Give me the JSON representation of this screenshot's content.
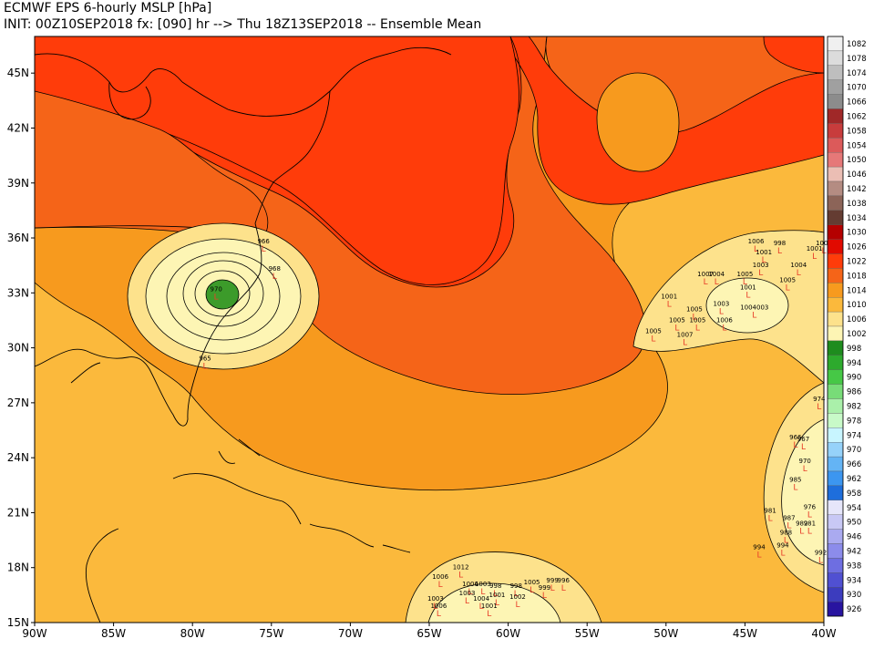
{
  "header": {
    "title_line1": "ECMWF EPS 6-hourly MSLP [hPa]",
    "title_line2": "INIT: 00Z10SEP2018 fx: [090] hr --> Thu 18Z13SEP2018 -- Ensemble Mean"
  },
  "map": {
    "lon_range": [
      -90,
      -40
    ],
    "lat_range": [
      15,
      47
    ],
    "lat_ticks": [
      {
        "value": 45,
        "label": "45N"
      },
      {
        "value": 42,
        "label": "42N"
      },
      {
        "value": 39,
        "label": "39N"
      },
      {
        "value": 36,
        "label": "36N"
      },
      {
        "value": 33,
        "label": "33N"
      },
      {
        "value": 30,
        "label": "30N"
      },
      {
        "value": 27,
        "label": "27N"
      },
      {
        "value": 24,
        "label": "24N"
      },
      {
        "value": 21,
        "label": "21N"
      },
      {
        "value": 18,
        "label": "18N"
      },
      {
        "value": 15,
        "label": "15N"
      }
    ],
    "lon_ticks": [
      {
        "value": -90,
        "label": "90W"
      },
      {
        "value": -85,
        "label": "85W"
      },
      {
        "value": -80,
        "label": "80W"
      },
      {
        "value": -75,
        "label": "75W"
      },
      {
        "value": -70,
        "label": "70W"
      },
      {
        "value": -65,
        "label": "65W"
      },
      {
        "value": -60,
        "label": "60W"
      },
      {
        "value": -55,
        "label": "55W"
      },
      {
        "value": -50,
        "label": "50W"
      },
      {
        "value": -45,
        "label": "45W"
      },
      {
        "value": -40,
        "label": "40W"
      }
    ],
    "colors": {
      "p1022": "#ff3c0a",
      "p1018": "#f56418",
      "p1014": "#f79a1e",
      "p1010": "#fbb93c",
      "p1006": "#fde28c",
      "low": "#3c9b2a",
      "low_marker": "#e8402a"
    },
    "lows": [
      {
        "lon": -78.5,
        "lat": 33.1,
        "label": "970"
      },
      {
        "lon": -79.2,
        "lat": 29.3,
        "label": "965"
      },
      {
        "lon": -75.5,
        "lat": 35.7,
        "label": "966"
      },
      {
        "lon": -74.8,
        "lat": 34.2,
        "label": "968"
      },
      {
        "lon": -49.8,
        "lat": 32.7,
        "label": "1001"
      },
      {
        "lon": -48.2,
        "lat": 32.0,
        "label": "1005"
      },
      {
        "lon": -47.5,
        "lat": 33.9,
        "label": "1007"
      },
      {
        "lon": -46.8,
        "lat": 33.9,
        "label": "1004"
      },
      {
        "lon": -45.0,
        "lat": 33.9,
        "label": "1005"
      },
      {
        "lon": -44.8,
        "lat": 33.2,
        "label": "1001"
      },
      {
        "lon": -44.4,
        "lat": 32.1,
        "label": "1004003"
      },
      {
        "lon": -46.3,
        "lat": 31.4,
        "label": "1006"
      },
      {
        "lon": -49.3,
        "lat": 31.4,
        "label": "1005"
      },
      {
        "lon": -48.0,
        "lat": 31.4,
        "label": "1005"
      },
      {
        "lon": -50.8,
        "lat": 30.8,
        "label": "1005"
      },
      {
        "lon": -48.8,
        "lat": 30.6,
        "label": "1007"
      },
      {
        "lon": -46.5,
        "lat": 32.3,
        "label": "1003"
      },
      {
        "lon": -44.3,
        "lat": 35.7,
        "label": "1006"
      },
      {
        "lon": -42.8,
        "lat": 35.6,
        "label": "998"
      },
      {
        "lon": -43.8,
        "lat": 35.1,
        "label": "1001"
      },
      {
        "lon": -44.0,
        "lat": 34.4,
        "label": "1003"
      },
      {
        "lon": -41.6,
        "lat": 34.4,
        "label": "1004"
      },
      {
        "lon": -40.6,
        "lat": 35.3,
        "label": "1001"
      },
      {
        "lon": -40.0,
        "lat": 35.6,
        "label": "1004"
      },
      {
        "lon": -42.3,
        "lat": 33.6,
        "label": "1005"
      },
      {
        "lon": -40.3,
        "lat": 27.1,
        "label": "974"
      },
      {
        "lon": -41.8,
        "lat": 25.0,
        "label": "966"
      },
      {
        "lon": -41.3,
        "lat": 24.9,
        "label": "967"
      },
      {
        "lon": -41.2,
        "lat": 23.7,
        "label": "970"
      },
      {
        "lon": -41.8,
        "lat": 22.7,
        "label": "985"
      },
      {
        "lon": -40.9,
        "lat": 21.2,
        "label": "976"
      },
      {
        "lon": -43.4,
        "lat": 21.0,
        "label": "981"
      },
      {
        "lon": -42.2,
        "lat": 20.6,
        "label": "987"
      },
      {
        "lon": -41.4,
        "lat": 20.3,
        "label": "982"
      },
      {
        "lon": -40.9,
        "lat": 20.3,
        "label": "981"
      },
      {
        "lon": -42.4,
        "lat": 19.8,
        "label": "988"
      },
      {
        "lon": -44.1,
        "lat": 19.0,
        "label": "994"
      },
      {
        "lon": -42.6,
        "lat": 19.1,
        "label": "994"
      },
      {
        "lon": -40.2,
        "lat": 18.7,
        "label": "992"
      },
      {
        "lon": -64.3,
        "lat": 17.4,
        "label": "1006"
      },
      {
        "lon": -63.0,
        "lat": 17.9,
        "label": "1012"
      },
      {
        "lon": -62.4,
        "lat": 17.0,
        "label": "1006"
      },
      {
        "lon": -61.6,
        "lat": 17.0,
        "label": "1003"
      },
      {
        "lon": -60.8,
        "lat": 16.9,
        "label": "998"
      },
      {
        "lon": -59.5,
        "lat": 16.9,
        "label": "998"
      },
      {
        "lon": -58.5,
        "lat": 17.1,
        "label": "1005"
      },
      {
        "lon": -57.2,
        "lat": 17.2,
        "label": "999"
      },
      {
        "lon": -56.5,
        "lat": 17.2,
        "label": "996"
      },
      {
        "lon": -57.7,
        "lat": 16.8,
        "label": "999"
      },
      {
        "lon": -64.6,
        "lat": 16.2,
        "label": "1003"
      },
      {
        "lon": -64.4,
        "lat": 15.8,
        "label": "1006"
      },
      {
        "lon": -62.6,
        "lat": 16.5,
        "label": "1003"
      },
      {
        "lon": -61.7,
        "lat": 16.2,
        "label": "1004"
      },
      {
        "lon": -60.7,
        "lat": 16.4,
        "label": "1001"
      },
      {
        "lon": -61.2,
        "lat": 15.8,
        "label": "1001"
      },
      {
        "lon": -59.4,
        "lat": 16.3,
        "label": "1002"
      }
    ]
  },
  "colorbar": {
    "levels": [
      {
        "label": "1082",
        "color": "#f0f0f0"
      },
      {
        "label": "1078",
        "color": "#dcdcdc"
      },
      {
        "label": "1074",
        "color": "#bebebe"
      },
      {
        "label": "1070",
        "color": "#a0a0a0"
      },
      {
        "label": "1066",
        "color": "#8c8c8c"
      },
      {
        "label": "1062",
        "color": "#a02828"
      },
      {
        "label": "1058",
        "color": "#c83c3c"
      },
      {
        "label": "1054",
        "color": "#dc5a5a"
      },
      {
        "label": "1050",
        "color": "#e67878"
      },
      {
        "label": "1046",
        "color": "#ebbeb4"
      },
      {
        "label": "1042",
        "color": "#b48c82"
      },
      {
        "label": "1038",
        "color": "#8c6458"
      },
      {
        "label": "1034",
        "color": "#643c32"
      },
      {
        "label": "1030",
        "color": "#b40000"
      },
      {
        "label": "1026",
        "color": "#e10a00"
      },
      {
        "label": "1022",
        "color": "#ff3c0a"
      },
      {
        "label": "1018",
        "color": "#f56418"
      },
      {
        "label": "1014",
        "color": "#f79a1e"
      },
      {
        "label": "1010",
        "color": "#fbb93c"
      },
      {
        "label": "1006",
        "color": "#fde28c"
      },
      {
        "label": "1002",
        "color": "#fdf5b4"
      },
      {
        "label": "998",
        "color": "#1e8c1e"
      },
      {
        "label": "994",
        "color": "#2daa2d"
      },
      {
        "label": "990",
        "color": "#46c846"
      },
      {
        "label": "986",
        "color": "#78dc78"
      },
      {
        "label": "982",
        "color": "#aaf0aa"
      },
      {
        "label": "978",
        "color": "#c8fac8"
      },
      {
        "label": "974",
        "color": "#c8f5ff"
      },
      {
        "label": "970",
        "color": "#96d2fa"
      },
      {
        "label": "966",
        "color": "#64b4f5"
      },
      {
        "label": "962",
        "color": "#3c96f0"
      },
      {
        "label": "958",
        "color": "#1e6edc"
      },
      {
        "label": "954",
        "color": "#e6e6fa"
      },
      {
        "label": "950",
        "color": "#c8c8f5"
      },
      {
        "label": "946",
        "color": "#aaaaf0"
      },
      {
        "label": "942",
        "color": "#8c8ceb"
      },
      {
        "label": "938",
        "color": "#6e6ee1"
      },
      {
        "label": "934",
        "color": "#5050d2"
      },
      {
        "label": "930",
        "color": "#3c3cbe"
      },
      {
        "label": "926",
        "color": "#2814a0"
      }
    ]
  }
}
